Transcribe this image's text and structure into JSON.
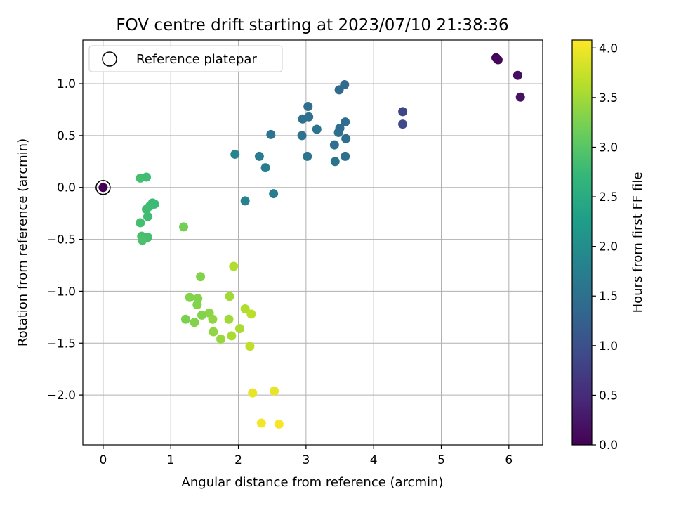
{
  "chart_data": {
    "type": "scatter",
    "title": "FOV centre drift starting at 2023/07/10 21:38:36",
    "xlabel": "Angular distance from reference (arcmin)",
    "ylabel": "Rotation from reference (arcmin)",
    "xlim": [
      -0.3,
      6.5
    ],
    "ylim": [
      -2.48,
      1.42
    ],
    "xticks": [
      0,
      1,
      2,
      3,
      4,
      5,
      6
    ],
    "yticks": [
      -2.0,
      -1.5,
      -1.0,
      -0.5,
      0.0,
      0.5,
      1.0
    ],
    "xtick_labels": [
      "0",
      "1",
      "2",
      "3",
      "4",
      "5",
      "6"
    ],
    "ytick_labels": [
      "−2.0",
      "−1.5",
      "−1.0",
      "−0.5",
      "0.0",
      "0.5",
      "1.0"
    ],
    "grid": true,
    "legend": {
      "position": "top-left",
      "entries": [
        "Reference platepar"
      ]
    },
    "reference_point": {
      "x": 0.0,
      "y": 0.0
    },
    "colorbar": {
      "label": "Hours from first FF file",
      "range": [
        0.0,
        4.08
      ],
      "colormap": "viridis",
      "ticks": [
        0.0,
        0.5,
        1.0,
        1.5,
        2.0,
        2.5,
        3.0,
        3.5,
        4.0
      ],
      "tick_labels": [
        "0.0",
        "0.5",
        "1.0",
        "1.5",
        "2.0",
        "2.5",
        "3.0",
        "3.5",
        "4.0"
      ]
    },
    "points": [
      {
        "x": 0.0,
        "y": 0.0,
        "hours": 0.0
      },
      {
        "x": 5.81,
        "y": 1.25,
        "hours": 0.05
      },
      {
        "x": 5.84,
        "y": 1.23,
        "hours": 0.08
      },
      {
        "x": 6.13,
        "y": 1.08,
        "hours": 0.15
      },
      {
        "x": 6.17,
        "y": 0.87,
        "hours": 0.2
      },
      {
        "x": 4.43,
        "y": 0.73,
        "hours": 0.85
      },
      {
        "x": 4.43,
        "y": 0.61,
        "hours": 0.9
      },
      {
        "x": 3.57,
        "y": 0.99,
        "hours": 1.4
      },
      {
        "x": 3.49,
        "y": 0.94,
        "hours": 1.42
      },
      {
        "x": 3.03,
        "y": 0.78,
        "hours": 1.48
      },
      {
        "x": 3.04,
        "y": 0.68,
        "hours": 1.5
      },
      {
        "x": 2.95,
        "y": 0.66,
        "hours": 1.52
      },
      {
        "x": 3.16,
        "y": 0.56,
        "hours": 1.55
      },
      {
        "x": 3.58,
        "y": 0.63,
        "hours": 1.45
      },
      {
        "x": 3.5,
        "y": 0.57,
        "hours": 1.46
      },
      {
        "x": 3.48,
        "y": 0.53,
        "hours": 1.47
      },
      {
        "x": 3.59,
        "y": 0.47,
        "hours": 1.48
      },
      {
        "x": 2.94,
        "y": 0.5,
        "hours": 1.53
      },
      {
        "x": 2.48,
        "y": 0.51,
        "hours": 1.6
      },
      {
        "x": 3.42,
        "y": 0.41,
        "hours": 1.5
      },
      {
        "x": 3.58,
        "y": 0.3,
        "hours": 1.5
      },
      {
        "x": 3.43,
        "y": 0.25,
        "hours": 1.55
      },
      {
        "x": 3.02,
        "y": 0.3,
        "hours": 1.6
      },
      {
        "x": 2.31,
        "y": 0.3,
        "hours": 1.7
      },
      {
        "x": 2.4,
        "y": 0.19,
        "hours": 1.72
      },
      {
        "x": 1.95,
        "y": 0.32,
        "hours": 1.85
      },
      {
        "x": 2.52,
        "y": -0.06,
        "hours": 1.75
      },
      {
        "x": 2.1,
        "y": -0.13,
        "hours": 1.82
      },
      {
        "x": 0.55,
        "y": 0.09,
        "hours": 2.85
      },
      {
        "x": 0.64,
        "y": 0.1,
        "hours": 2.82
      },
      {
        "x": 0.73,
        "y": -0.15,
        "hours": 2.75
      },
      {
        "x": 0.76,
        "y": -0.16,
        "hours": 2.77
      },
      {
        "x": 0.69,
        "y": -0.18,
        "hours": 2.78
      },
      {
        "x": 0.64,
        "y": -0.21,
        "hours": 2.8
      },
      {
        "x": 0.66,
        "y": -0.28,
        "hours": 2.8
      },
      {
        "x": 0.55,
        "y": -0.34,
        "hours": 2.85
      },
      {
        "x": 0.57,
        "y": -0.47,
        "hours": 2.88
      },
      {
        "x": 0.66,
        "y": -0.48,
        "hours": 2.85
      },
      {
        "x": 0.58,
        "y": -0.51,
        "hours": 2.9
      },
      {
        "x": 1.19,
        "y": -0.38,
        "hours": 3.2
      },
      {
        "x": 1.93,
        "y": -0.76,
        "hours": 3.6
      },
      {
        "x": 1.44,
        "y": -0.86,
        "hours": 3.3
      },
      {
        "x": 1.87,
        "y": -1.05,
        "hours": 3.5
      },
      {
        "x": 1.28,
        "y": -1.06,
        "hours": 3.3
      },
      {
        "x": 1.4,
        "y": -1.07,
        "hours": 3.3
      },
      {
        "x": 1.39,
        "y": -1.13,
        "hours": 3.3
      },
      {
        "x": 2.1,
        "y": -1.17,
        "hours": 3.6
      },
      {
        "x": 1.57,
        "y": -1.21,
        "hours": 3.35
      },
      {
        "x": 1.46,
        "y": -1.23,
        "hours": 3.3
      },
      {
        "x": 2.19,
        "y": -1.22,
        "hours": 3.65
      },
      {
        "x": 1.22,
        "y": -1.27,
        "hours": 3.25
      },
      {
        "x": 1.86,
        "y": -1.27,
        "hours": 3.5
      },
      {
        "x": 1.62,
        "y": -1.27,
        "hours": 3.4
      },
      {
        "x": 1.35,
        "y": -1.3,
        "hours": 3.3
      },
      {
        "x": 2.02,
        "y": -1.36,
        "hours": 3.55
      },
      {
        "x": 1.63,
        "y": -1.39,
        "hours": 3.4
      },
      {
        "x": 1.9,
        "y": -1.43,
        "hours": 3.55
      },
      {
        "x": 1.74,
        "y": -1.46,
        "hours": 3.45
      },
      {
        "x": 2.17,
        "y": -1.53,
        "hours": 3.7
      },
      {
        "x": 2.21,
        "y": -1.98,
        "hours": 3.95
      },
      {
        "x": 2.53,
        "y": -1.96,
        "hours": 3.95
      },
      {
        "x": 2.34,
        "y": -2.27,
        "hours": 4.02
      },
      {
        "x": 2.6,
        "y": -2.28,
        "hours": 4.05
      }
    ]
  }
}
